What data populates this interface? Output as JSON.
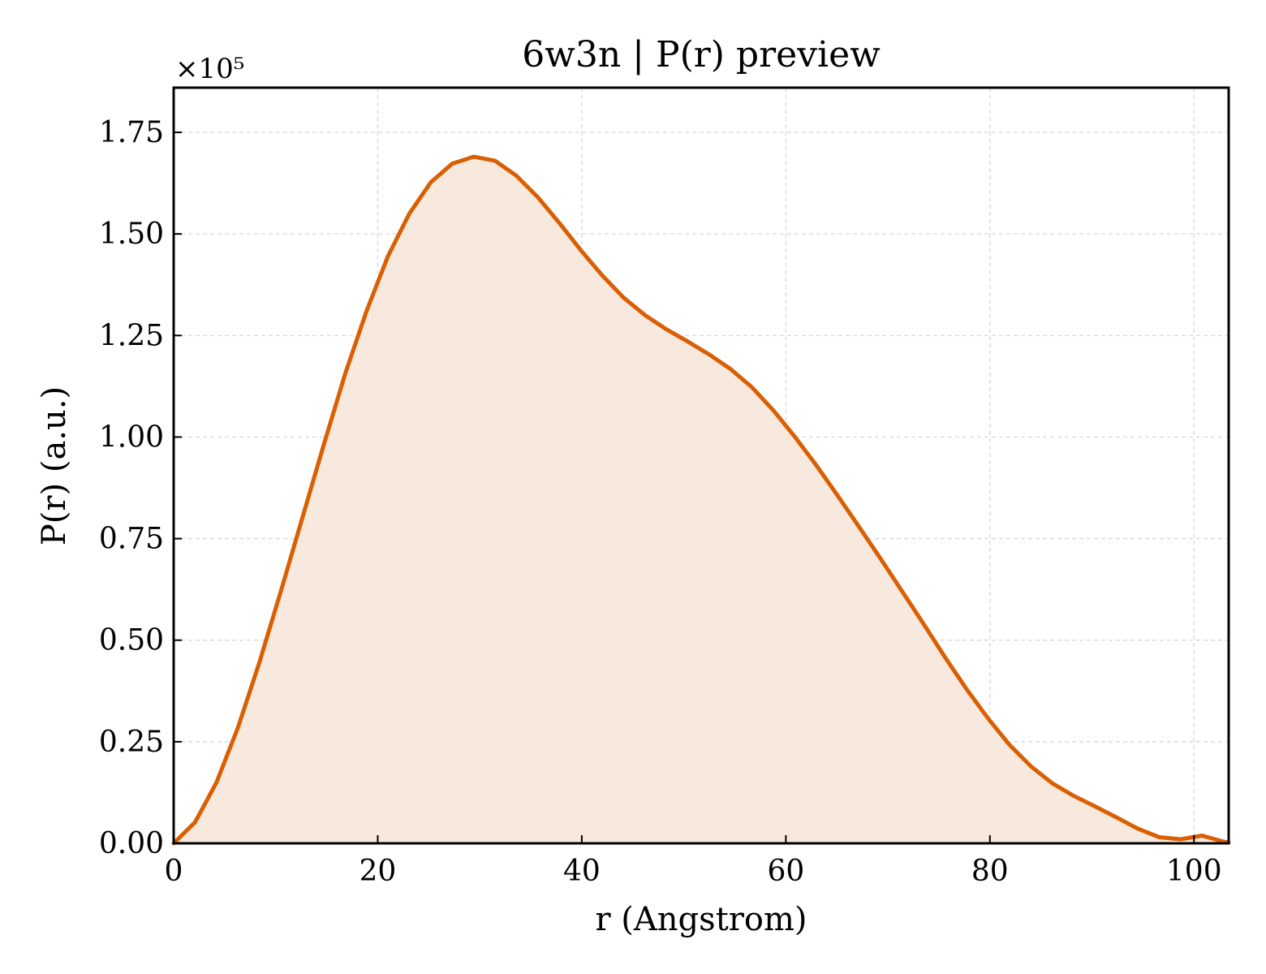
{
  "chart_data": {
    "type": "area",
    "title": "6w3n | P(r) preview",
    "xlabel": "r (Angstrom)",
    "ylabel": "P(r) (a.u.)",
    "y_offset_label": "×10⁵",
    "xlim": [
      0,
      103.4
    ],
    "ylim": [
      0,
      1.86
    ],
    "xticks": [
      0,
      20,
      40,
      60,
      80,
      100
    ],
    "xtick_labels": [
      "0",
      "20",
      "40",
      "60",
      "80",
      "100"
    ],
    "yticks": [
      0,
      0.25,
      0.5,
      0.75,
      1.0,
      1.25,
      1.5,
      1.75
    ],
    "ytick_labels": [
      "0.00",
      "0.25",
      "0.50",
      "0.75",
      "1.00",
      "1.25",
      "1.50",
      "1.75"
    ],
    "grid": true,
    "line_color": "#d95f02",
    "fill_color": "#f8e9de",
    "series": [
      {
        "x": [
          0,
          2.1,
          4.2,
          6.3,
          8.4,
          10.5,
          12.6,
          14.7,
          16.8,
          18.9,
          21.0,
          23.1,
          25.2,
          27.3,
          29.4,
          31.5,
          33.6,
          35.7,
          37.8,
          39.9,
          42.0,
          44.1,
          46.2,
          48.3,
          50.4,
          52.5,
          54.6,
          56.7,
          58.8,
          60.9,
          63.0,
          65.1,
          67.2,
          69.3,
          71.4,
          73.5,
          75.6,
          77.7,
          79.8,
          81.9,
          84.0,
          86.1,
          88.2,
          90.3,
          92.4,
          94.5,
          96.6,
          98.7,
          100.8,
          102.9,
          103.4
        ],
        "y": [
          0.0,
          0.052,
          0.15,
          0.285,
          0.445,
          0.62,
          0.8,
          0.98,
          1.155,
          1.31,
          1.445,
          1.55,
          1.627,
          1.673,
          1.69,
          1.68,
          1.643,
          1.59,
          1.527,
          1.46,
          1.398,
          1.343,
          1.3,
          1.265,
          1.235,
          1.203,
          1.167,
          1.122,
          1.065,
          1.0,
          0.93,
          0.855,
          0.778,
          0.7,
          0.62,
          0.54,
          0.458,
          0.38,
          0.308,
          0.243,
          0.19,
          0.148,
          0.117,
          0.091,
          0.064,
          0.036,
          0.015,
          0.01,
          0.019,
          0.004,
          0.002
        ]
      }
    ]
  }
}
